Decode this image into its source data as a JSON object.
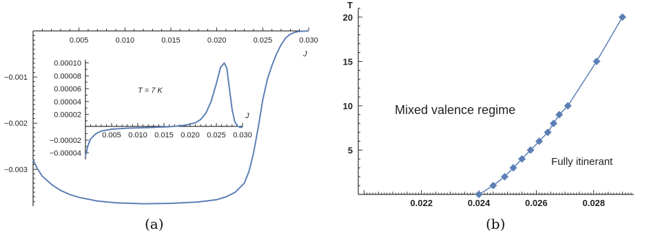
{
  "chart_data": [
    {
      "type": "line",
      "caption": "(a)",
      "xlabel": "J",
      "xlim": [
        0.0,
        0.03
      ],
      "ylim": [
        -0.0038,
        0.0
      ],
      "x_ticks": [
        "0.005",
        "0.010",
        "0.015",
        "0.020",
        "0.025",
        "0.030"
      ],
      "y_ticks": [
        "-0.001",
        "-0.002",
        "-0.003"
      ],
      "series": [
        {
          "color": "#5b7fb5",
          "points": [
            [
              0.0,
              -0.0028
            ],
            [
              0.0005,
              -0.003
            ],
            [
              0.001,
              -0.00315
            ],
            [
              0.002,
              -0.00333
            ],
            [
              0.003,
              -0.00346
            ],
            [
              0.004,
              -0.00355
            ],
            [
              0.005,
              -0.00361
            ],
            [
              0.007,
              -0.00369
            ],
            [
              0.009,
              -0.00373
            ],
            [
              0.012,
              -0.00375
            ],
            [
              0.015,
              -0.00374
            ],
            [
              0.018,
              -0.00371
            ],
            [
              0.02,
              -0.00366
            ],
            [
              0.021,
              -0.0036
            ],
            [
              0.022,
              -0.0035
            ],
            [
              0.023,
              -0.0033
            ],
            [
              0.0235,
              -0.00305
            ],
            [
              0.024,
              -0.00265
            ],
            [
              0.0245,
              -0.0021
            ],
            [
              0.025,
              -0.0015
            ],
            [
              0.0255,
              -0.00105
            ],
            [
              0.026,
              -0.00075
            ],
            [
              0.0265,
              -0.0005
            ],
            [
              0.027,
              -0.0003
            ],
            [
              0.0275,
              -0.00015
            ],
            [
              0.028,
              -7e-05
            ],
            [
              0.0285,
              -3e-05
            ],
            [
              0.029,
              -1e-05
            ],
            [
              0.03,
              0.0
            ]
          ]
        }
      ],
      "inset": {
        "type": "line",
        "annotation": "T = 7 K",
        "xlabel": "J",
        "xlim": [
          0.0,
          0.03
        ],
        "ylim": [
          -5e-05,
          0.000105
        ],
        "x_ticks": [
          "0.005",
          "0.010",
          "0.015",
          "0.020",
          "0.025",
          "0.030"
        ],
        "y_ticks": [
          "0.00010",
          "0.00008",
          "0.00006",
          "0.00004",
          "0.00002",
          "-0.00002",
          "-0.00004"
        ],
        "series": [
          {
            "color": "#5b7fb5",
            "points": [
              [
                0.0,
                -4.5e-05
              ],
              [
                0.0005,
                -2.8e-05
              ],
              [
                0.001,
                -1.8e-05
              ],
              [
                0.002,
                -1e-05
              ],
              [
                0.003,
                -6e-06
              ],
              [
                0.005,
                -3e-06
              ],
              [
                0.008,
                -1.5e-06
              ],
              [
                0.012,
                -5e-07
              ],
              [
                0.016,
                8e-07
              ],
              [
                0.019,
                3e-06
              ],
              [
                0.021,
                7e-06
              ],
              [
                0.022,
                1.2e-05
              ],
              [
                0.023,
                2.2e-05
              ],
              [
                0.024,
                4e-05
              ],
              [
                0.025,
                6.8e-05
              ],
              [
                0.0258,
                9.3e-05
              ],
              [
                0.0265,
                0.0001
              ],
              [
                0.027,
                9.2e-05
              ],
              [
                0.0275,
                6e-05
              ],
              [
                0.028,
                2.8e-05
              ],
              [
                0.0285,
                9e-06
              ],
              [
                0.029,
                2e-06
              ],
              [
                0.0295,
                0.0
              ],
              [
                0.03,
                0.0
              ]
            ]
          }
        ]
      }
    },
    {
      "type": "line",
      "caption": "(b)",
      "ylabel": "T",
      "xlim": [
        0.0198,
        0.0294
      ],
      "ylim": [
        0,
        21
      ],
      "x_ticks": [
        "0.022",
        "0.024",
        "0.026",
        "0.028"
      ],
      "y_ticks": [
        "5",
        "10",
        "15",
        "20"
      ],
      "annotations": [
        "Mixed valence regime",
        "Fully itinerant"
      ],
      "series": [
        {
          "color": "#5b7fb5",
          "markers": "diamond",
          "points": [
            [
              0.024,
              0
            ],
            [
              0.0245,
              1
            ],
            [
              0.0249,
              2
            ],
            [
              0.0252,
              3
            ],
            [
              0.0255,
              4
            ],
            [
              0.0258,
              5
            ],
            [
              0.0261,
              6
            ],
            [
              0.0264,
              7
            ],
            [
              0.0266,
              8
            ],
            [
              0.0268,
              9
            ],
            [
              0.0271,
              10
            ],
            [
              0.0281,
              15
            ],
            [
              0.029,
              20
            ]
          ]
        }
      ]
    }
  ]
}
